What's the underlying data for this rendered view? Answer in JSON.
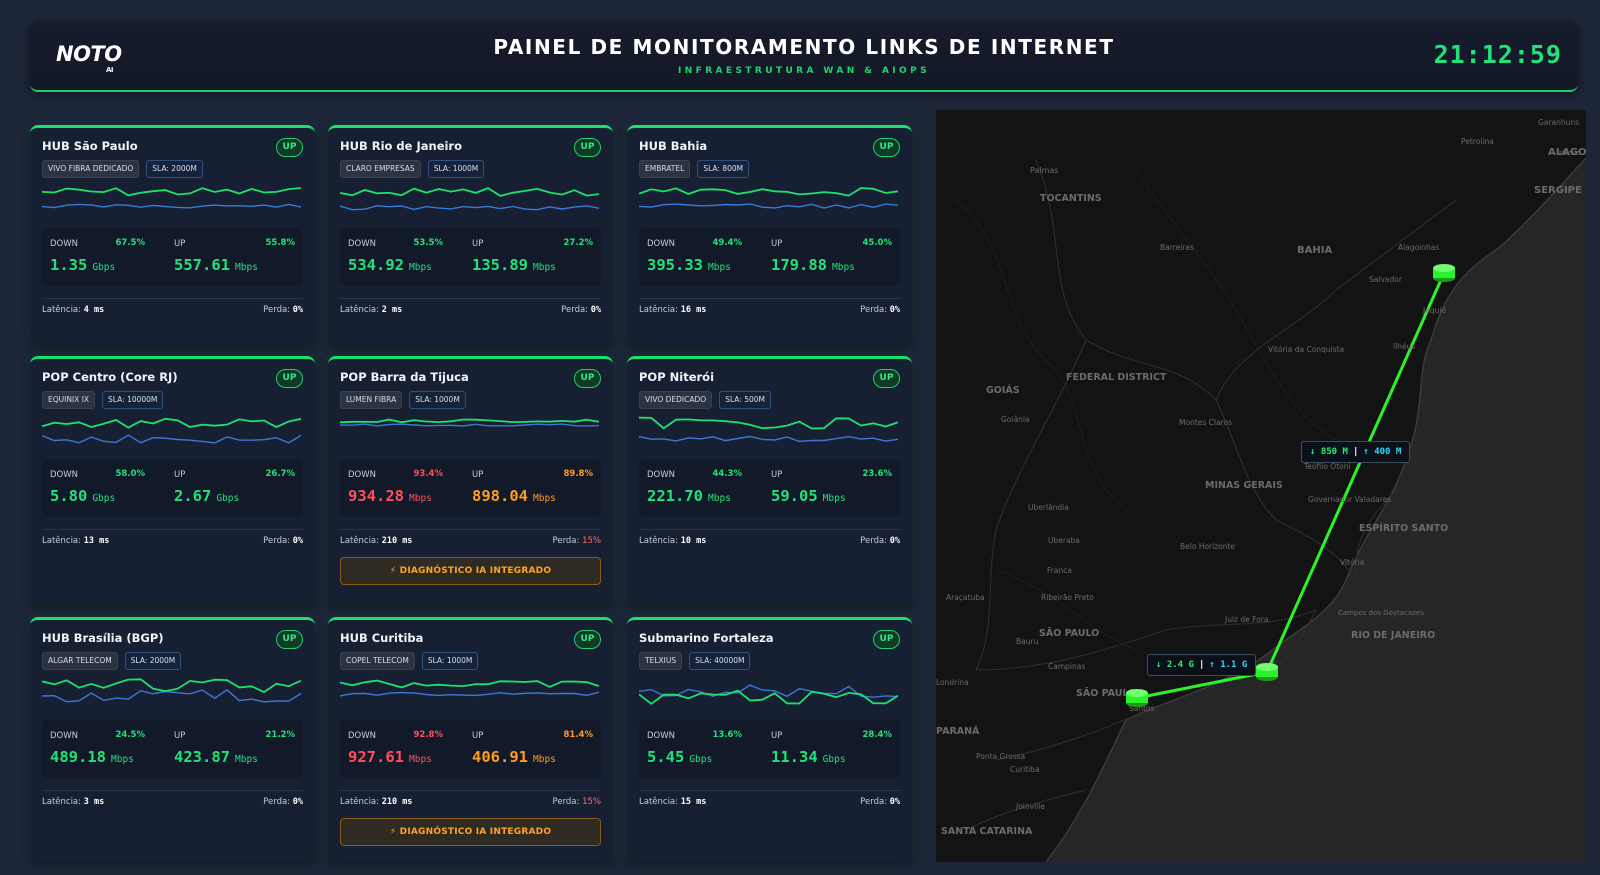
{
  "header": {
    "logo": "NOTO",
    "logo_suffix": "AI",
    "title": "PAINEL DE MONITORAMENTO LINKS DE INTERNET",
    "subtitle": "INFRAESTRUTURA WAN & AIOPS",
    "clock": "21:12:59"
  },
  "labels": {
    "down": "DOWN",
    "up": "UP",
    "latency": "Latência:",
    "loss": "Perda:"
  },
  "colors": {
    "ok": "#24e07a",
    "critical": "#ff4f5e",
    "warning": "#ff9d1f",
    "down_line": "#1fe06f",
    "up_line": "#3a78d6"
  },
  "cards": [
    {
      "name": "HUB São Paulo",
      "status": "UP",
      "isp": "VIVO FIBRA DEDICADO",
      "sla": "SLA: 2000M",
      "down_pct": "67.5%",
      "down_value": "1.35",
      "down_unit": "Gbps",
      "up_pct": "55.8%",
      "up_value": "557.61",
      "up_unit": "Mbps",
      "latency": "4 ms",
      "loss": "0%",
      "state": "ok"
    },
    {
      "name": "HUB Rio de Janeiro",
      "status": "UP",
      "isp": "CLARO EMPRESAS",
      "sla": "SLA: 1000M",
      "down_pct": "53.5%",
      "down_value": "534.92",
      "down_unit": "Mbps",
      "up_pct": "27.2%",
      "up_value": "135.89",
      "up_unit": "Mbps",
      "latency": "2 ms",
      "loss": "0%",
      "state": "ok"
    },
    {
      "name": "HUB Bahia",
      "status": "UP",
      "isp": "EMBRATEL",
      "sla": "SLA: 800M",
      "down_pct": "49.4%",
      "down_value": "395.33",
      "down_unit": "Mbps",
      "up_pct": "45.0%",
      "up_value": "179.88",
      "up_unit": "Mbps",
      "latency": "16 ms",
      "loss": "0%",
      "state": "ok"
    },
    {
      "name": "POP Centro (Core RJ)",
      "status": "UP",
      "isp": "EQUINIX IX",
      "sla": "SLA: 10000M",
      "down_pct": "58.0%",
      "down_value": "5.80",
      "down_unit": "Gbps",
      "up_pct": "26.7%",
      "up_value": "2.67",
      "up_unit": "Gbps",
      "latency": "13 ms",
      "loss": "0%",
      "state": "ok"
    },
    {
      "name": "POP Barra da Tijuca",
      "status": "UP",
      "isp": "LUMEN FIBRA",
      "sla": "SLA: 1000M",
      "down_pct": "93.4%",
      "down_value": "934.28",
      "down_unit": "Mbps",
      "up_pct": "89.8%",
      "up_value": "898.04",
      "up_unit": "Mbps",
      "latency": "210 ms",
      "loss": "15%",
      "state": "alert",
      "diagnostic": "⚡ DIAGNÓSTICO IA INTEGRADO"
    },
    {
      "name": "POP Niterói",
      "status": "UP",
      "isp": "VIVO DEDICADO",
      "sla": "SLA: 500M",
      "down_pct": "44.3%",
      "down_value": "221.70",
      "down_unit": "Mbps",
      "up_pct": "23.6%",
      "up_value": "59.05",
      "up_unit": "Mbps",
      "latency": "10 ms",
      "loss": "0%",
      "state": "ok"
    },
    {
      "name": "HUB Brasília (BGP)",
      "status": "UP",
      "isp": "ALGAR TELECOM",
      "sla": "SLA: 2000M",
      "down_pct": "24.5%",
      "down_value": "489.18",
      "down_unit": "Mbps",
      "up_pct": "21.2%",
      "up_value": "423.87",
      "up_unit": "Mbps",
      "latency": "3 ms",
      "loss": "0%",
      "state": "ok"
    },
    {
      "name": "HUB Curitiba",
      "status": "UP",
      "isp": "COPEL TELECOM",
      "sla": "SLA: 1000M",
      "down_pct": "92.8%",
      "down_value": "927.61",
      "down_unit": "Mbps",
      "up_pct": "81.4%",
      "up_value": "406.91",
      "up_unit": "Mbps",
      "latency": "210 ms",
      "loss": "15%",
      "state": "alert",
      "diagnostic": "⚡ DIAGNÓSTICO IA INTEGRADO"
    },
    {
      "name": "Submarino Fortaleza",
      "status": "UP",
      "isp": "TELXIUS",
      "sla": "SLA: 40000M",
      "down_pct": "13.6%",
      "down_value": "5.45",
      "down_unit": "Gbps",
      "up_pct": "28.4%",
      "up_value": "11.34",
      "up_unit": "Gbps",
      "latency": "15 ms",
      "loss": "0%",
      "state": "ok"
    }
  ],
  "map": {
    "links": [
      {
        "down": "↓ 850 M",
        "sep": "|",
        "up": "↑ 400 M"
      },
      {
        "down": "↓ 2.4 G",
        "sep": "|",
        "up": "↑ 1.1 G"
      }
    ],
    "places": [
      "Garanhuns",
      "Petrolina",
      "ALAGOAS",
      "Maceió",
      "Palmas",
      "TOCANTINS",
      "SERGIPE",
      "Barreiras",
      "BAHIA",
      "Alagoinhas",
      "Salvador",
      "Jequié",
      "Vitória da Conquista",
      "Ilhéus",
      "GOIÁS",
      "FEDERAL DISTRICT",
      "Goiânia",
      "Montes Claros",
      "Teófilo Otoni",
      "MINAS GERAIS",
      "Uberlândia",
      "Governador Valadares",
      "ESPÍRITO SANTO",
      "Uberaba",
      "Belo Horizonte",
      "Vitória",
      "Franca",
      "Araçatuba",
      "Ribeirão Preto",
      "Juiz de Fora",
      "Campos dos Goytacazes",
      "Bauru",
      "SÃO PAULO",
      "RIO DE JANEIRO",
      "Campinas",
      "Londrina",
      "SÃO PAULO",
      "Santos",
      "PARANÁ",
      "Ponta Grossa",
      "Curitiba",
      "Joinville",
      "SANTA CATARINA"
    ]
  }
}
